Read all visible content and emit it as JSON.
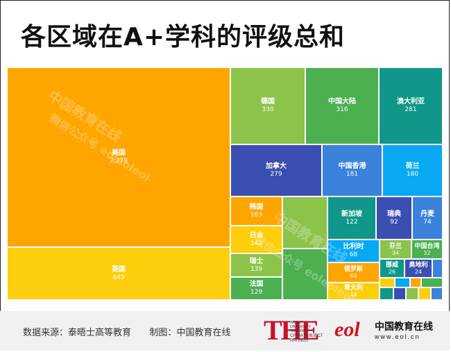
{
  "title": "各区域在A+学科的评级总和",
  "watermark": {
    "line1": "中国教育在线",
    "line2": "微信公众号 eoleoleol"
  },
  "footer": {
    "source_label": "数据来源：",
    "source": "泰晤士高等教育",
    "maker_label": "制图：",
    "maker": "中国教育在线",
    "the_logo": {
      "mark": "THE",
      "lines": [
        "WORLD",
        "UNIVERSITY",
        "RANKINGS",
        "CHINA SUBJECT",
        "RATINGS"
      ]
    },
    "eol_logo": {
      "mark": "eol",
      "name": "中国教育在线",
      "url": "www.eol.cn"
    }
  },
  "chart_data": {
    "type": "treemap",
    "items": [
      {
        "name": "美国",
        "label": "2,279",
        "value": 2279,
        "color": "#ffa500"
      },
      {
        "name": "英国",
        "label": "645",
        "value": 645,
        "color": "#fdce0c"
      },
      {
        "name": "德国",
        "label": "330",
        "value": 330,
        "color": "#8cc34a"
      },
      {
        "name": "中国大陆",
        "label": "316",
        "value": 316,
        "color": "#4caf50"
      },
      {
        "name": "澳大利亚",
        "label": "281",
        "value": 281,
        "color": "#11978a"
      },
      {
        "name": "加拿大",
        "label": "279",
        "value": 279,
        "color": "#3a4fb1"
      },
      {
        "name": "中国香港",
        "label": "181",
        "value": 181,
        "color": "#3b82dc"
      },
      {
        "name": "荷兰",
        "label": "180",
        "value": 180,
        "color": "#08a9f2"
      },
      {
        "name": "韩国",
        "label": "163",
        "value": 163,
        "color": "#ffa500"
      },
      {
        "name": "日本",
        "label": "142",
        "value": 142,
        "color": "#fdce0c"
      },
      {
        "name": "瑞士",
        "label": "139",
        "value": 139,
        "color": "#8cc34a"
      },
      {
        "name": "法国",
        "label": "129",
        "value": 129,
        "color": "#4caf50"
      },
      {
        "name": "新加坡",
        "label": "122",
        "value": 122,
        "color": "#11978a"
      },
      {
        "name": "瑞典",
        "label": "92",
        "value": 92,
        "color": "#3a4fb1"
      },
      {
        "name": "丹麦",
        "label": "74",
        "value": 74,
        "color": "#3b82dc"
      },
      {
        "name": "比利时",
        "label": "68",
        "value": 68,
        "color": "#08a9f2"
      },
      {
        "name": "俄罗斯",
        "label": "64",
        "value": 64,
        "color": "#ffa500"
      },
      {
        "name": "意大利",
        "label": "44",
        "value": 44,
        "color": "#fdce0c"
      },
      {
        "name": "芬兰",
        "label": "34",
        "value": 34,
        "color": "#8cc34a"
      },
      {
        "name": "中国台湾",
        "label": "32",
        "value": 32,
        "color": "#4caf50"
      },
      {
        "name": "挪威",
        "label": "26",
        "value": 26,
        "color": "#11978a"
      },
      {
        "name": "奥地利",
        "label": "24",
        "value": 24,
        "color": "#3a4fb1"
      }
    ],
    "minor_tiles": [
      {
        "color": "#8cc34a"
      },
      {
        "color": "#4caf50"
      },
      {
        "color": "#3b82dc"
      },
      {
        "color": "#fdce0c"
      },
      {
        "color": "#08a9f2"
      },
      {
        "color": "#ffa500"
      },
      {
        "color": "#4caf50"
      },
      {
        "color": "#11978a"
      },
      {
        "color": "#3a4fb1"
      },
      {
        "color": "#8cc34a"
      },
      {
        "color": "#fdce0c"
      },
      {
        "color": "#3b82dc"
      }
    ]
  }
}
